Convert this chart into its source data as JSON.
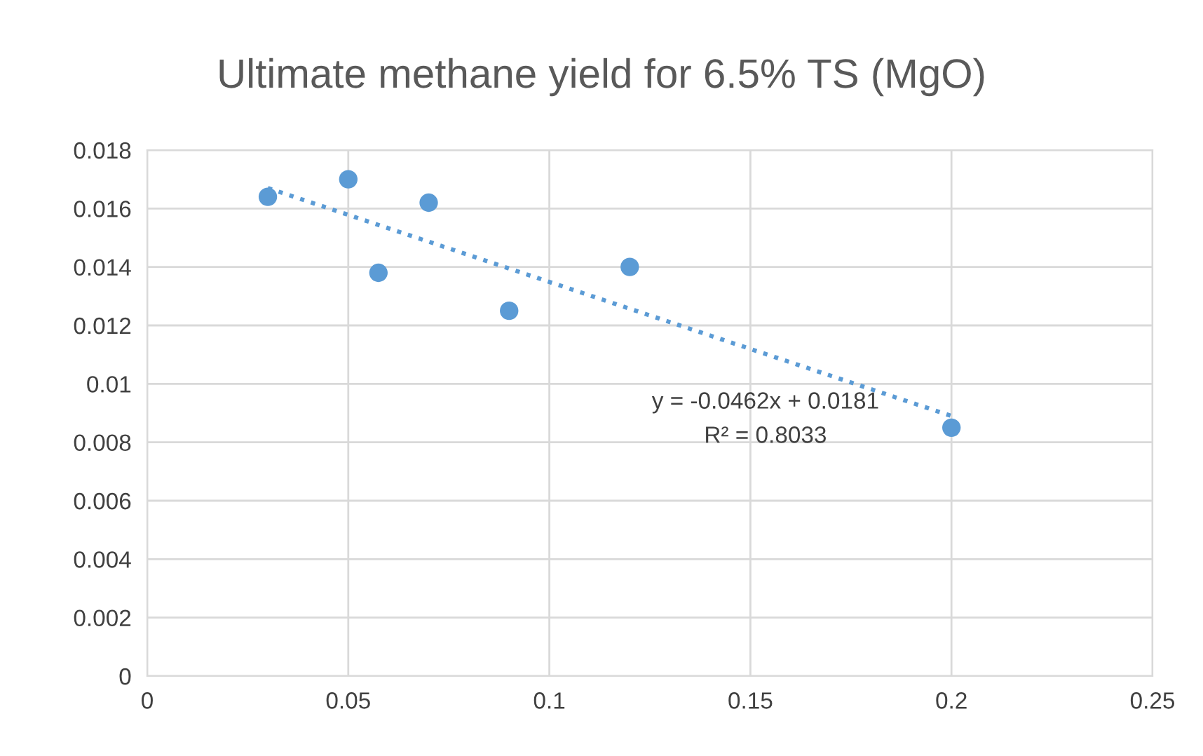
{
  "chart_data": {
    "type": "scatter",
    "title": "Ultimate methane yield for 6.5% TS (MgO)",
    "xlim": [
      0,
      0.25
    ],
    "xticks": [
      0,
      0.05,
      0.1,
      0.15,
      0.2,
      0.25
    ],
    "ylim": [
      0,
      0.018
    ],
    "yticks": [
      0,
      0.002,
      0.004,
      0.006,
      0.008,
      0.01,
      0.012,
      0.014,
      0.016,
      0.018
    ],
    "grid": true,
    "series": [
      {
        "marker": "circle",
        "color": "#5b9bd5",
        "x": [
          0.03,
          0.05,
          0.0575,
          0.07,
          0.09,
          0.12,
          0.2
        ],
        "values": [
          0.0164,
          0.017,
          0.0138,
          0.0162,
          0.0125,
          0.014,
          0.0085
        ]
      },
      {
        "type": "line",
        "color": "#5b9bd5",
        "line_style": "dotted",
        "x": [
          0.03,
          0.2
        ],
        "values": [
          0.0167,
          0.0089
        ]
      }
    ],
    "annotations": [
      "y = -0.0462x + 0.0181",
      "R² = 0.8033"
    ]
  }
}
